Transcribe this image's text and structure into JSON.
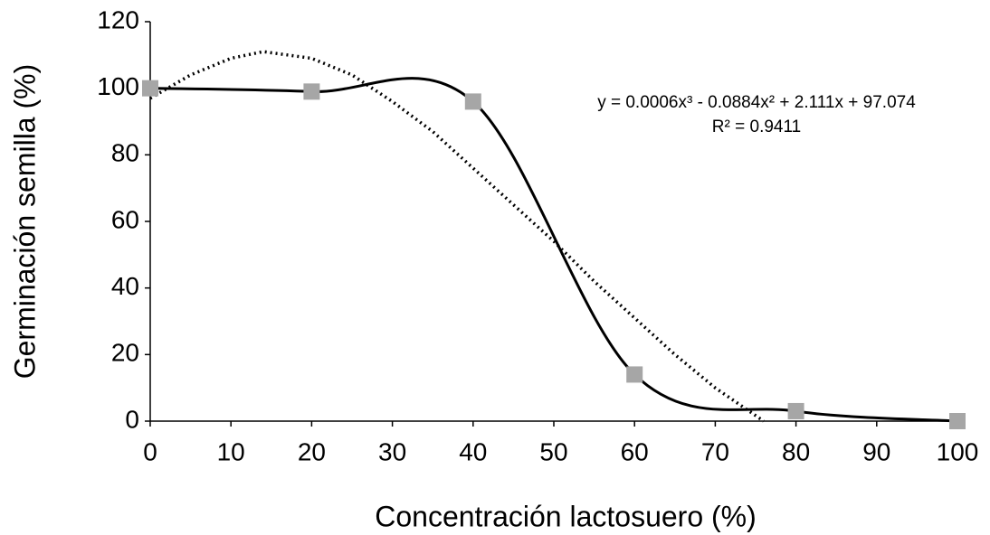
{
  "chart_data": {
    "type": "scatter",
    "x_label": "Concentración lactosuero (%)",
    "y_label": "Germinación semilla (%)",
    "series": [
      {
        "color": "#000000",
        "marker_color": "#a6a6a6",
        "smooth": true,
        "x": [
          0,
          20,
          40,
          60,
          80,
          100
        ],
        "values": [
          100,
          99,
          96,
          14,
          3,
          0
        ]
      }
    ],
    "trendline": {
      "color": "#000000",
      "style": "dotted",
      "x": [
        0,
        5,
        10,
        14,
        20,
        25,
        30,
        35,
        40,
        45,
        50,
        55,
        60,
        65,
        70,
        76
      ],
      "values": [
        97,
        104,
        109,
        111,
        109,
        104,
        96,
        87,
        76,
        65,
        54,
        42,
        31,
        20,
        10,
        0
      ]
    },
    "annotations": [
      "y = 0.0006x³ - 0.0884x² + 2.111x + 97.074",
      "R² = 0.9411"
    ],
    "xlim": [
      0,
      100
    ],
    "xticks": [
      0,
      10,
      20,
      30,
      40,
      50,
      60,
      70,
      80,
      90,
      100
    ],
    "ylim": [
      0,
      120
    ],
    "yticks": [
      0,
      20,
      40,
      60,
      80,
      100,
      120
    ],
    "grid": false
  }
}
